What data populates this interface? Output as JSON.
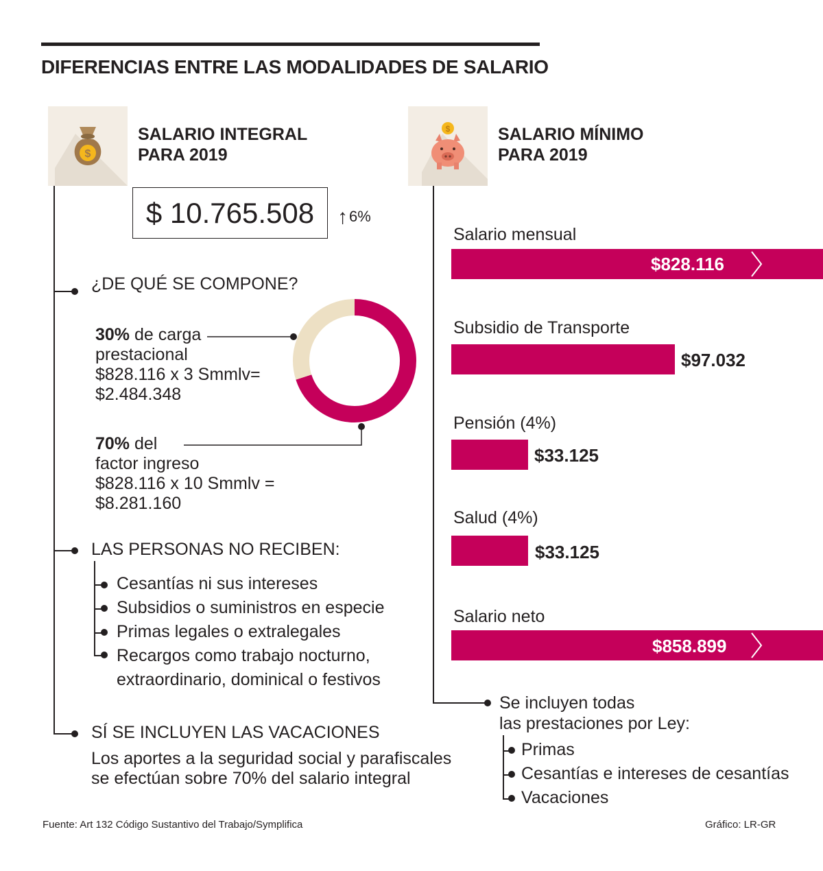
{
  "title": "DIFERENCIAS ENTRE LAS MODALIDADES DE SALARIO",
  "colors": {
    "accent": "#c5005a",
    "donut_light": "#ede0c4",
    "icon_bg": "#f3ede4",
    "text": "#231f20"
  },
  "integral": {
    "icon": "money-bag-icon",
    "title_line1": "SALARIO INTEGRAL",
    "title_line2": "PARA 2019",
    "amount": "$ 10.765.508",
    "change": "6%",
    "compose_heading": "¿DE QUÉ SE COMPONE?",
    "part1": {
      "pct": "30%",
      "text": " de carga",
      "line2": "prestacional",
      "line3": "$828.116 x 3 Smmlv=",
      "line4": "$2.484.348"
    },
    "part2": {
      "pct": "70%",
      "text": " del",
      "line2": "factor ingreso",
      "line3": "$828.116 x 10 Smmlv =",
      "line4": "$8.281.160"
    },
    "no_reciben_heading": "LAS PERSONAS NO RECIBEN:",
    "no_reciben": [
      "Cesantías ni sus intereses",
      "Subsidios o suministros en especie",
      "Primas legales o extralegales",
      "Recargos como trabajo nocturno,"
    ],
    "no_reciben_last_line2": "extraordinario, dominical o festivos",
    "vacaciones_heading": "SÍ SE INCLUYEN LAS VACACIONES",
    "vacaciones_line1": "Los aportes a la seguridad social y parafiscales",
    "vacaciones_line2": "se efectúan sobre 70% del salario integral"
  },
  "minimo": {
    "icon": "piggy-bank-icon",
    "title_line1": "SALARIO MÍNIMO",
    "title_line2": "PARA 2019",
    "prestaciones_line1": "Se incluyen todas",
    "prestaciones_line2": "las prestaciones por Ley:",
    "prestaciones": [
      "Primas",
      "Cesantías e intereses de cesantías",
      "Vacaciones"
    ]
  },
  "chart_data": [
    {
      "type": "pie",
      "categories": [
        "carga prestacional",
        "factor ingreso"
      ],
      "values": [
        30,
        70
      ]
    },
    {
      "type": "bar",
      "categories": [
        "Salario mensual",
        "Subsidio de Transporte",
        "Pensión (4%)",
        "Salud (4%)",
        "Salario neto"
      ],
      "values": [
        828116,
        97032,
        33125,
        33125,
        858899
      ],
      "value_labels": [
        "$828.116",
        "$97.032",
        "$33.125",
        "$33.125",
        "$858.899"
      ]
    }
  ],
  "footer": {
    "source": "Fuente: Art 132 Código Sustantivo del Trabajo/Symplifica",
    "credit": "Gráfico: LR-GR"
  }
}
